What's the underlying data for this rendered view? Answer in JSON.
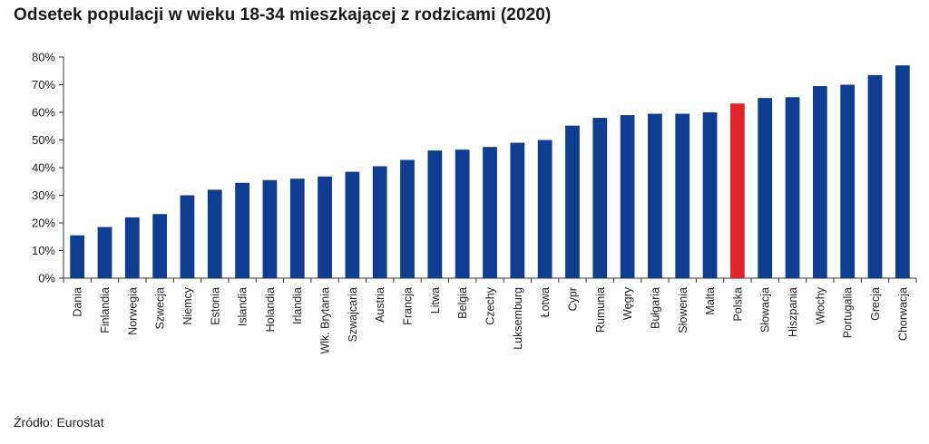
{
  "title": "Odsetek populacji w wieku 18-34 mieszkającej z rodzicami (2020)",
  "source": "Źródło: Eurostat",
  "colors": {
    "bar": "#0f3d91",
    "highlight": "#e3242b",
    "axis": "#333333"
  },
  "chart_data": {
    "type": "bar",
    "title": "Odsetek populacji w wieku 18-34 mieszkającej z rodzicami (2020)",
    "xlabel": "",
    "ylabel": "",
    "ylim": [
      0,
      80
    ],
    "yticks": [
      "0%",
      "10%",
      "20%",
      "30%",
      "40%",
      "50%",
      "60%",
      "70%",
      "80%"
    ],
    "grid": false,
    "highlight": "Polska",
    "categories": [
      "Dania",
      "Finlandia",
      "Norwegia",
      "Szwecja",
      "Niemcy",
      "Estonia",
      "Islandia",
      "Holandia",
      "Irlandia",
      "Wlk. Brytania",
      "Szwajcaria",
      "Austria",
      "Francja",
      "Litwa",
      "Belgia",
      "Czechy",
      "Luksemburg",
      "Łotwa",
      "Cypr",
      "Rumunia",
      "Węgry",
      "Bułgaria",
      "Słowenia",
      "Malta",
      "Polska",
      "Słowacja",
      "Hiszpania",
      "Włochy",
      "Portugalia",
      "Grecja",
      "Chorwacja"
    ],
    "values": [
      15.5,
      18.5,
      22,
      23.2,
      30,
      32,
      34.5,
      35.5,
      36,
      36.8,
      38.5,
      40.5,
      42.8,
      46.2,
      46.5,
      47.5,
      49,
      50,
      55.2,
      58,
      59,
      59.5,
      59.5,
      60,
      63.2,
      65.2,
      65.5,
      69.5,
      70,
      73.5,
      77
    ]
  }
}
